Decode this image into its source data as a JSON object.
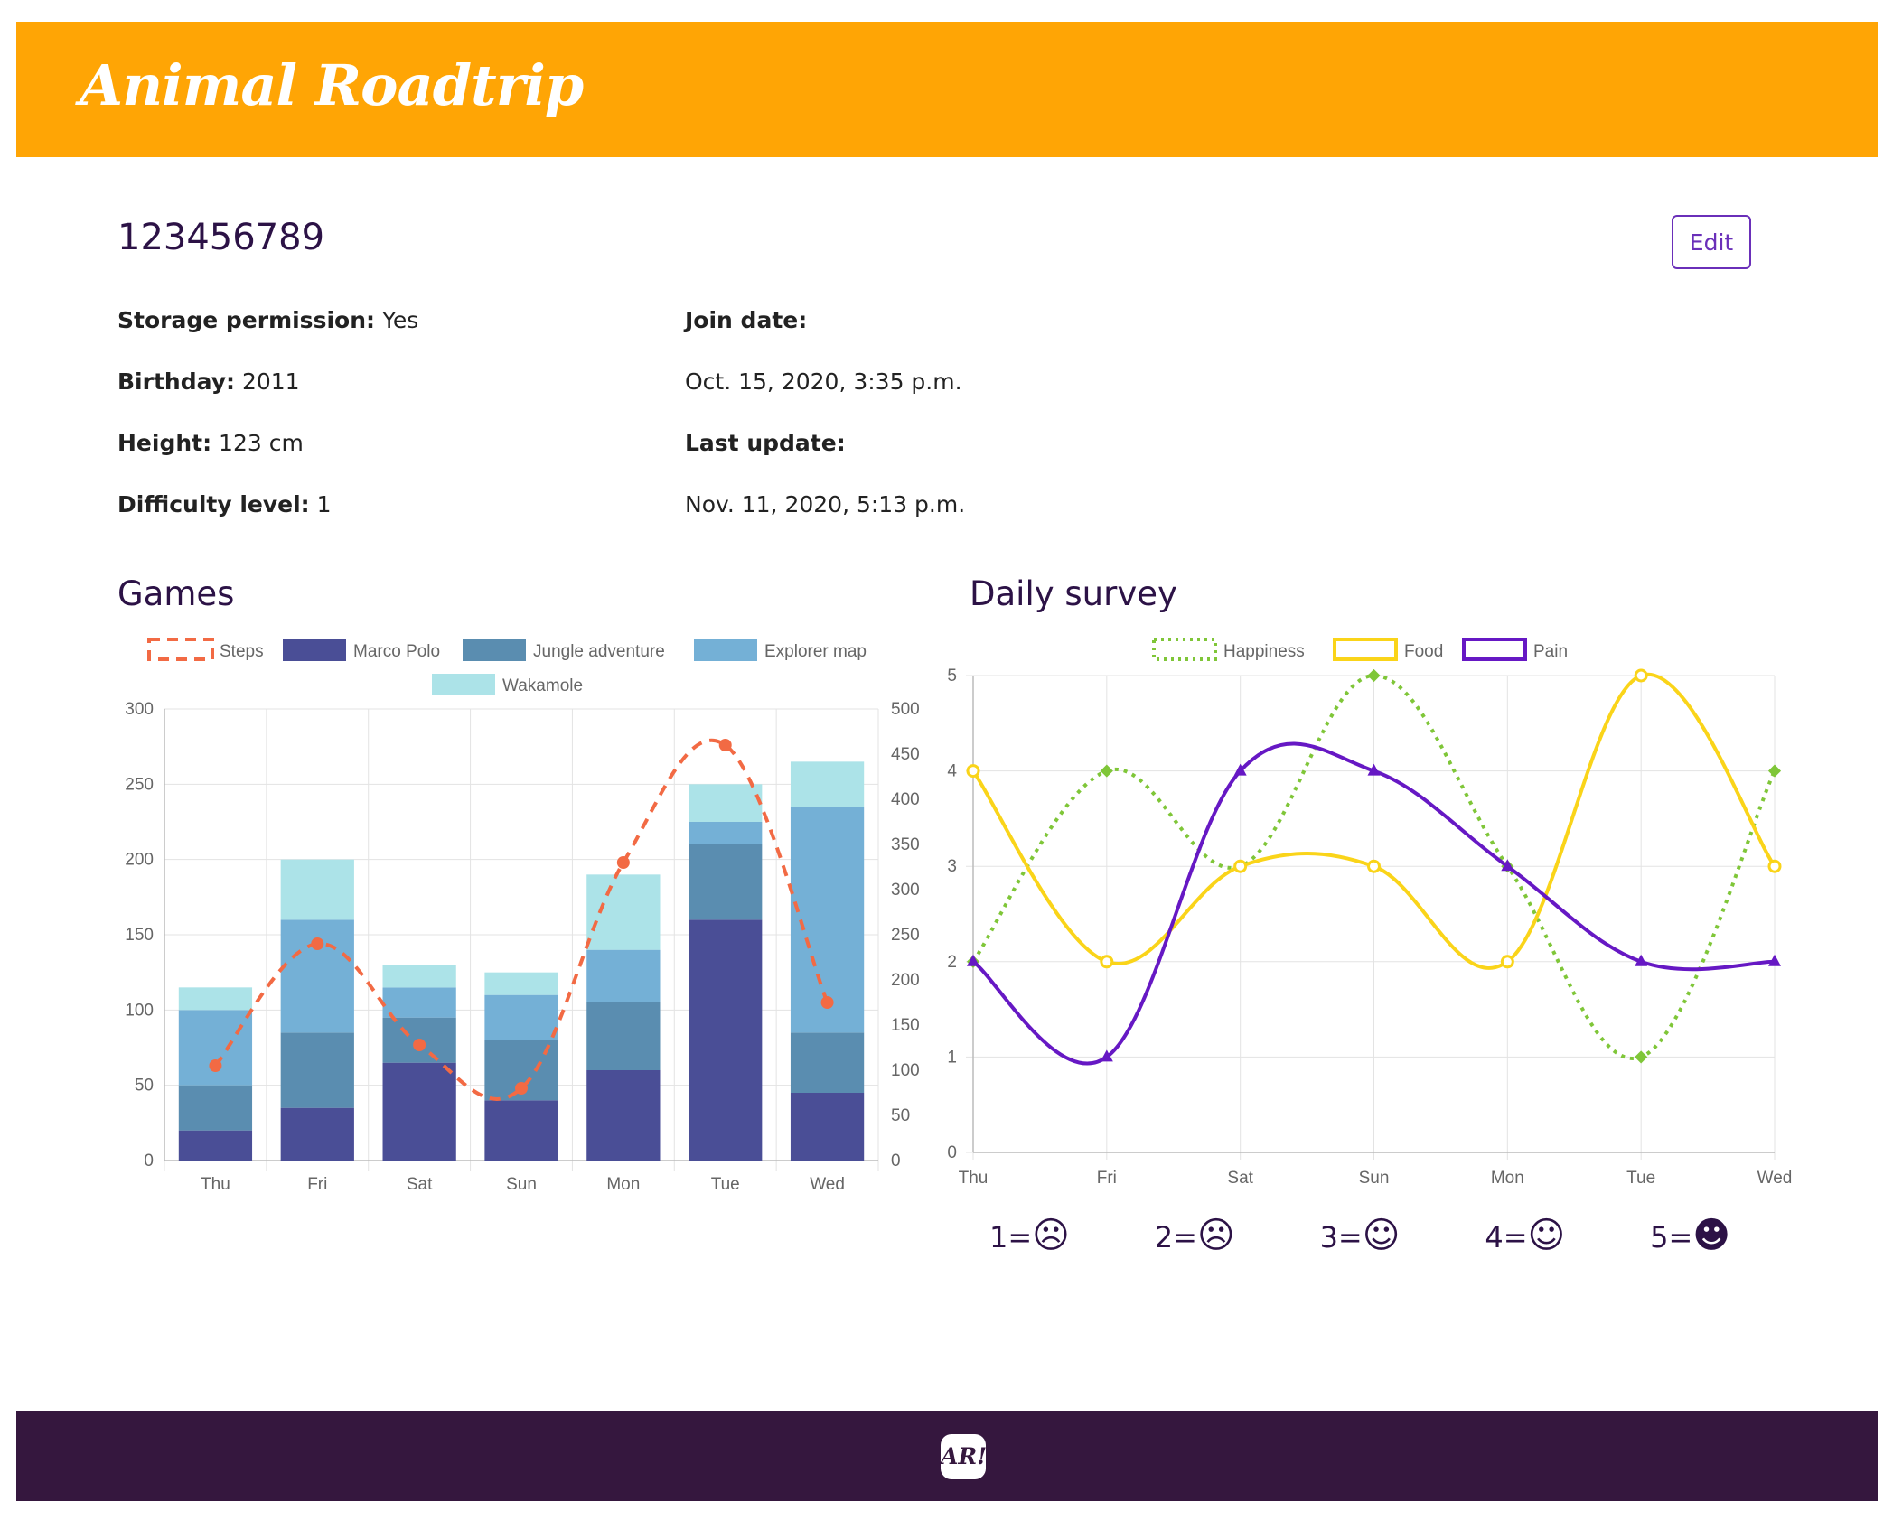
{
  "header": {
    "title": "Animal Roadtrip"
  },
  "footer": {
    "logo_text": "AR!"
  },
  "participant": {
    "id": "123456789",
    "edit_label": "Edit"
  },
  "info": {
    "storage_label": "Storage permission:",
    "storage_value": " Yes",
    "birthday_label": "Birthday:",
    "birthday_value": " 2011",
    "height_label": "Height:",
    "height_value": " 123 cm",
    "difficulty_label": "Difficulty level:",
    "difficulty_value": " 1",
    "join_label": "Join date:",
    "join_value": "Oct. 15, 2020, 3:35 p.m.",
    "update_label": "Last update:",
    "update_value": "Nov. 11, 2020, 5:13 p.m."
  },
  "sections": {
    "games": "Games",
    "survey": "Daily survey"
  },
  "survey_scale": [
    {
      "label": "1=",
      "face": "☹"
    },
    {
      "label": "2=",
      "face": "☹"
    },
    {
      "label": "3=",
      "face": "☺"
    },
    {
      "label": "4=",
      "face": "☺"
    },
    {
      "label": "5=",
      "face": "☻"
    }
  ],
  "chart_data": [
    {
      "type": "bar",
      "title": "Games",
      "stacked": true,
      "categories": [
        "Thu",
        "Fri",
        "Sat",
        "Sun",
        "Mon",
        "Tue",
        "Wed"
      ],
      "ylim": [
        0,
        300
      ],
      "y_ticks": [
        0,
        50,
        100,
        150,
        200,
        250,
        300
      ],
      "y2lim": [
        0,
        500
      ],
      "y2_ticks": [
        0,
        50,
        100,
        150,
        200,
        250,
        300,
        350,
        400,
        450,
        500
      ],
      "series": [
        {
          "name": "Marco Polo",
          "color": "#4a4e96",
          "values": [
            20,
            35,
            65,
            40,
            60,
            160,
            45
          ]
        },
        {
          "name": "Jungle adventure",
          "color": "#5a8db0",
          "values": [
            30,
            50,
            30,
            40,
            45,
            50,
            40
          ]
        },
        {
          "name": "Explorer map",
          "color": "#74b0d6",
          "values": [
            50,
            75,
            20,
            30,
            35,
            15,
            150
          ]
        },
        {
          "name": "Wakamole",
          "color": "#ace3e8",
          "values": [
            15,
            40,
            15,
            15,
            50,
            25,
            30
          ]
        }
      ],
      "line_series": {
        "name": "Steps",
        "color": "#f26a44",
        "axis": "right",
        "values": [
          105,
          240,
          128,
          80,
          330,
          460,
          175
        ]
      }
    },
    {
      "type": "line",
      "title": "Daily survey",
      "categories": [
        "Thu",
        "Fri",
        "Sat",
        "Sun",
        "Mon",
        "Tue",
        "Wed"
      ],
      "ylim": [
        0,
        5
      ],
      "y_ticks": [
        0,
        1,
        2,
        3,
        4,
        5
      ],
      "series": [
        {
          "name": "Happiness",
          "color": "#7fc638",
          "style": "dotted",
          "values": [
            2,
            4,
            3,
            5,
            3,
            1,
            4
          ]
        },
        {
          "name": "Food",
          "color": "#fad419",
          "style": "solid",
          "values": [
            4,
            2,
            3,
            3,
            2,
            5,
            3
          ]
        },
        {
          "name": "Pain",
          "color": "#6618c4",
          "style": "solid",
          "values": [
            2,
            1,
            4,
            4,
            3,
            2,
            2
          ]
        }
      ]
    }
  ]
}
